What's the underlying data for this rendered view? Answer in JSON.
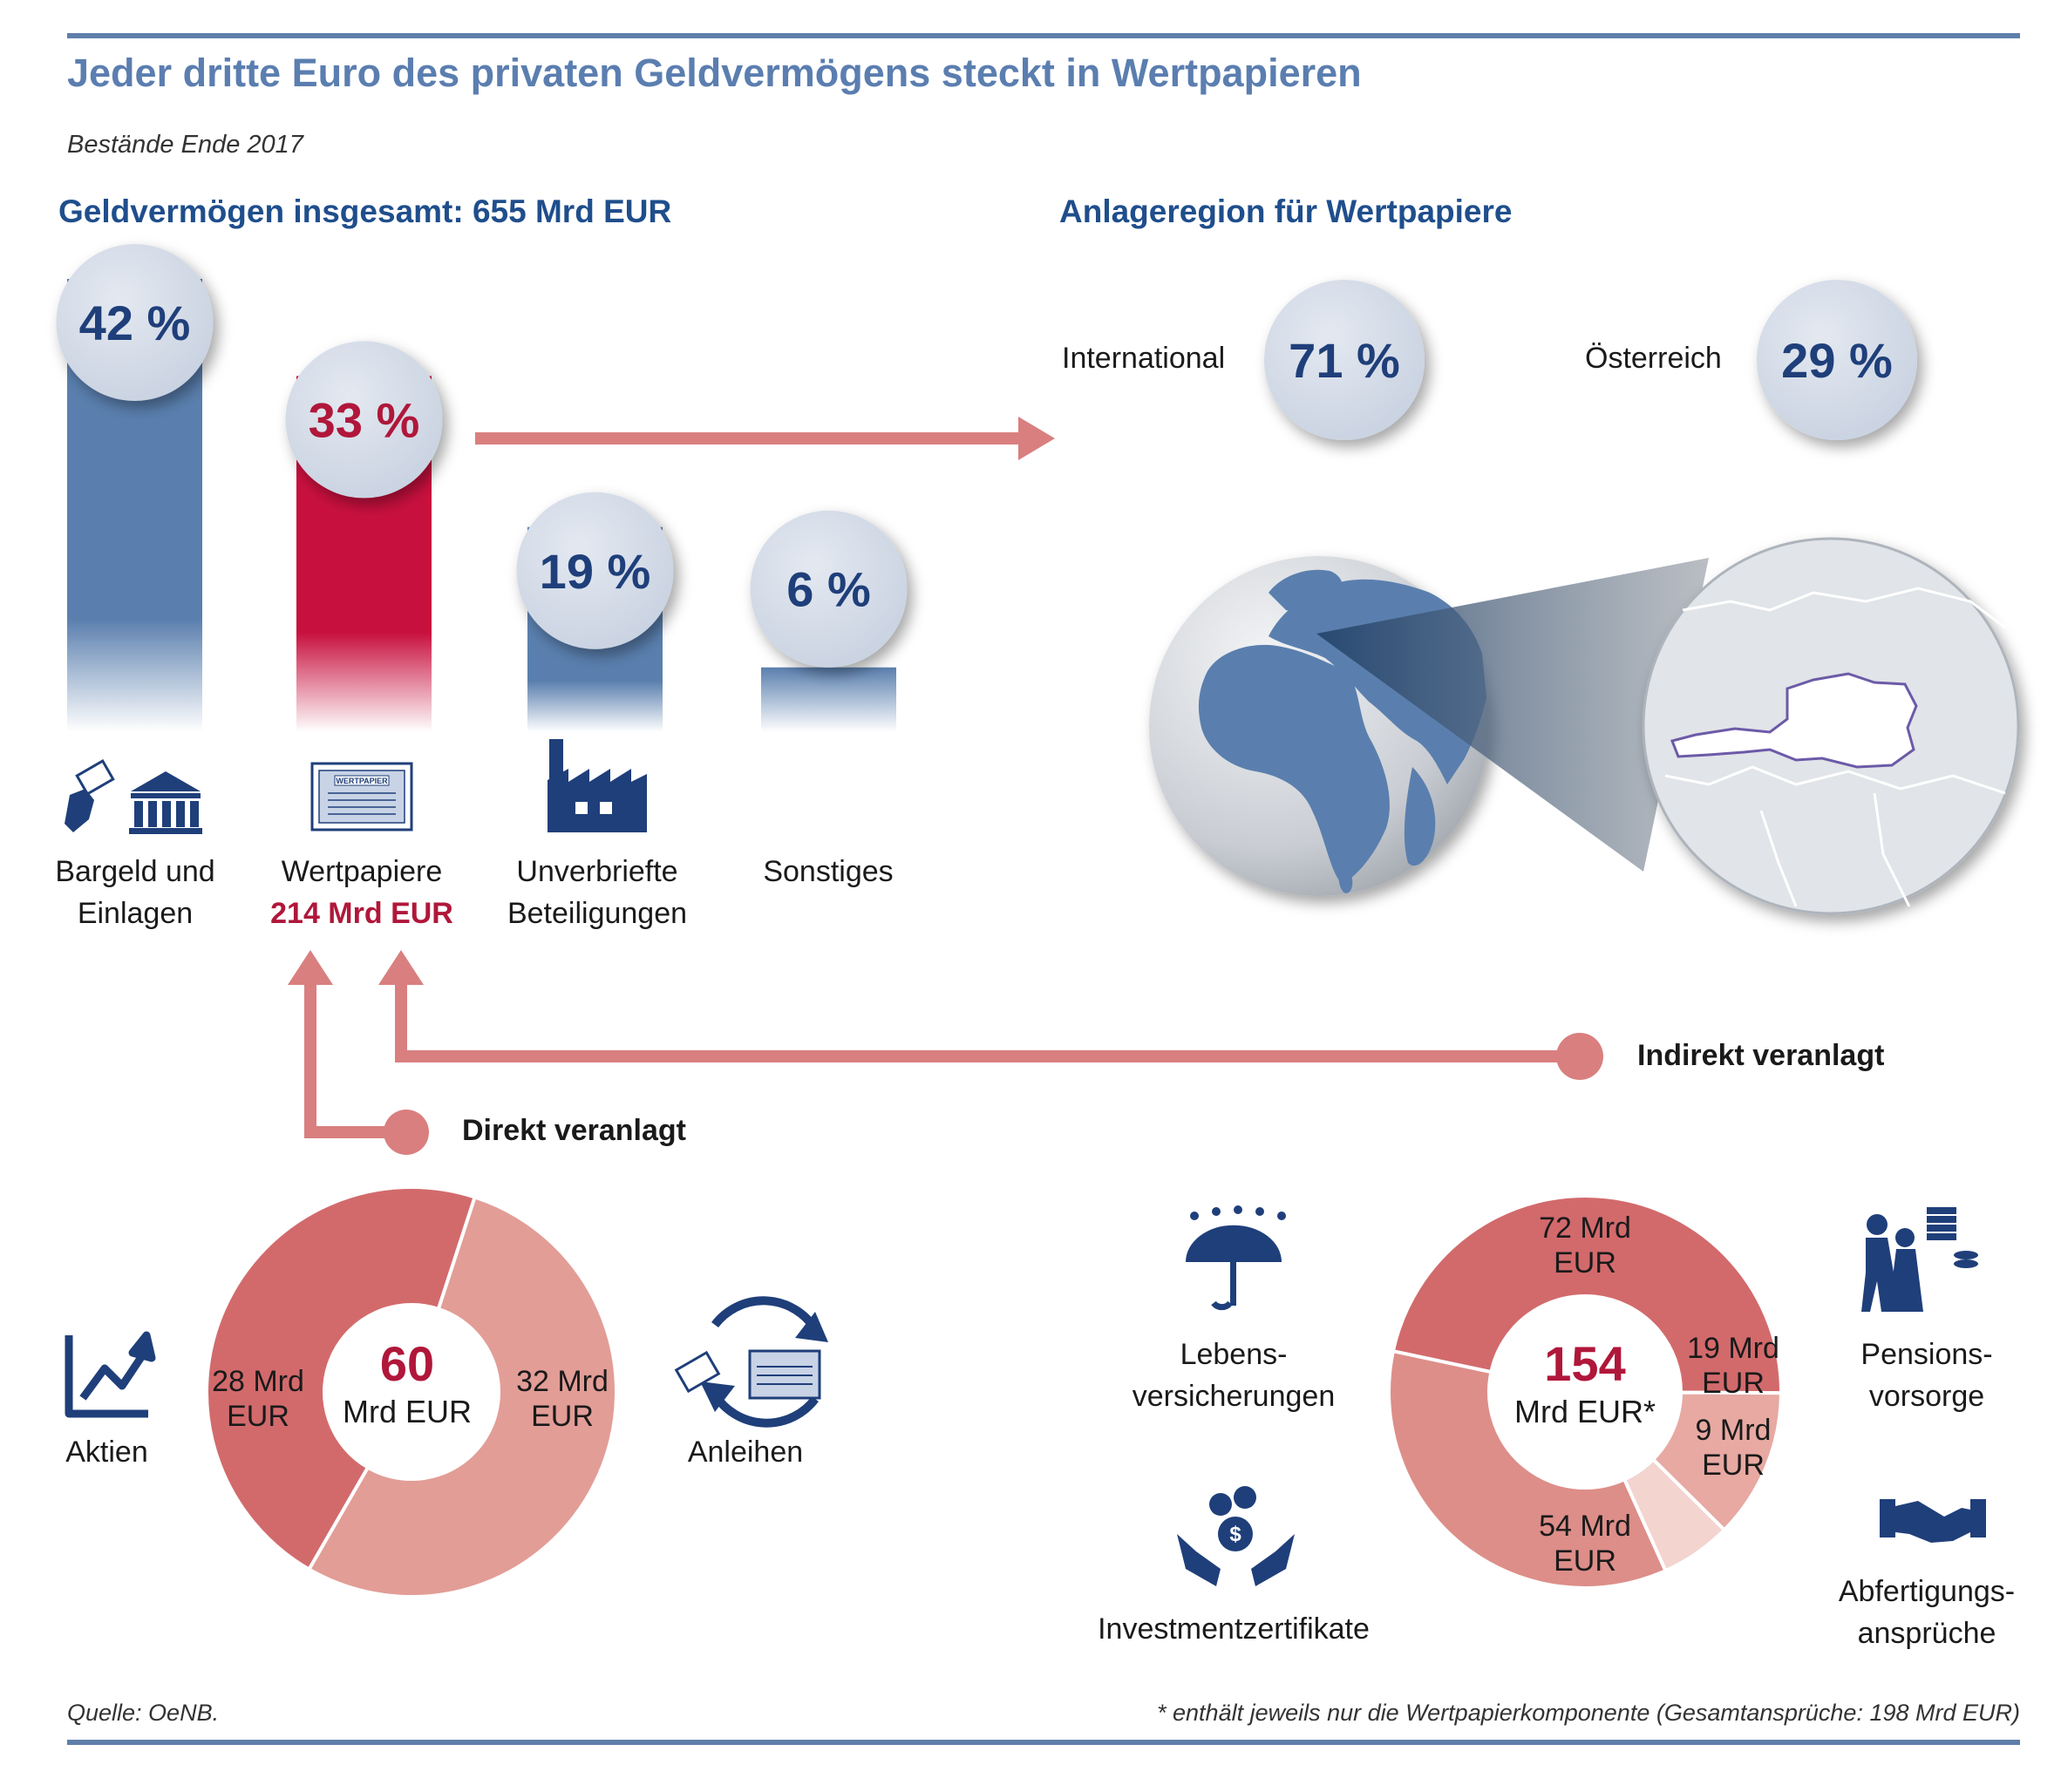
{
  "title": "Jeder dritte Euro des privaten Geldvermögens steckt in Wertpapieren",
  "subtitle": "Bestände Ende 2017",
  "colors": {
    "blue": "#5a7fae",
    "red": "#c8103e",
    "navy": "#1f3f7a",
    "coral": "#d97f7f",
    "circle": "#d6dde8"
  },
  "left_section": {
    "heading": "Geldvermögen insgesamt: 655 Mrd EUR"
  },
  "right_section": {
    "heading": "Anlageregion für Wertpapiere"
  },
  "regions": [
    {
      "name": "International",
      "share_label": "71 %",
      "share": 71
    },
    {
      "name": "Österreich",
      "share_label": "29 %",
      "share": 29
    }
  ],
  "bar_categories": [
    {
      "line1": "Bargeld und",
      "line2": "Einlagen",
      "pct_label": "42 %",
      "icon": "bank-cash-icon"
    },
    {
      "line1": "Wertpapiere",
      "line2": "214 Mrd EUR",
      "pct_label": "33 %",
      "icon": "security-certificate-icon"
    },
    {
      "line1": "Unverbriefte",
      "line2": "Beteiligungen",
      "pct_label": "19 %",
      "icon": "factory-icon"
    },
    {
      "line1": "Sonstiges",
      "line2": "",
      "pct_label": "6 %",
      "icon": ""
    }
  ],
  "certificate_text": "WERTPAPIER",
  "direct": {
    "label": "Direkt veranlagt",
    "center_value": "60",
    "center_unit": "Mrd EUR",
    "left_item": "Aktien",
    "right_item": "Anleihen"
  },
  "indirect": {
    "label": "Indirekt veranlagt",
    "center_value": "154",
    "center_unit": "Mrd EUR*",
    "items": [
      "Lebens-",
      "versicherungen",
      "Investmentzertifikate",
      "Pensions-",
      "vorsorge",
      "Abfertigungs-",
      "ansprüche"
    ]
  },
  "chart_data": [
    {
      "type": "bar",
      "title": "Geldvermögen insgesamt: 655 Mrd EUR",
      "categories": [
        "Bargeld und Einlagen",
        "Wertpapiere",
        "Unverbriefte Beteiligungen",
        "Sonstiges"
      ],
      "values": [
        42,
        33,
        19,
        6
      ],
      "value_labels": [
        "42 %",
        "33 %",
        "19 %",
        "6 %"
      ],
      "ylim": [
        0,
        42
      ]
    },
    {
      "type": "pie",
      "title": "Direkt veranlagt",
      "categories": [
        "Aktien",
        "Anleihen"
      ],
      "values": [
        28,
        32
      ],
      "value_labels": [
        [
          "28 Mrd",
          "EUR"
        ],
        [
          "32 Mrd",
          "EUR"
        ]
      ],
      "total": 60
    },
    {
      "type": "pie",
      "title": "Indirekt veranlagt",
      "categories": [
        "Lebensversicherungen",
        "Pensionsvorsorge",
        "Abfertigungsansprüche",
        "Investmentzertifikate"
      ],
      "values": [
        72,
        19,
        9,
        54
      ],
      "value_labels": [
        [
          "72 Mrd",
          "EUR"
        ],
        [
          "19 Mrd",
          "EUR"
        ],
        [
          "9 Mrd",
          "EUR"
        ],
        [
          "54 Mrd",
          "EUR"
        ]
      ],
      "total": 154
    }
  ],
  "footer": {
    "source": "Quelle: OeNB.",
    "note": "* enthält jeweils nur die Wertpapierkomponente (Gesamtansprüche: 198 Mrd EUR)"
  }
}
